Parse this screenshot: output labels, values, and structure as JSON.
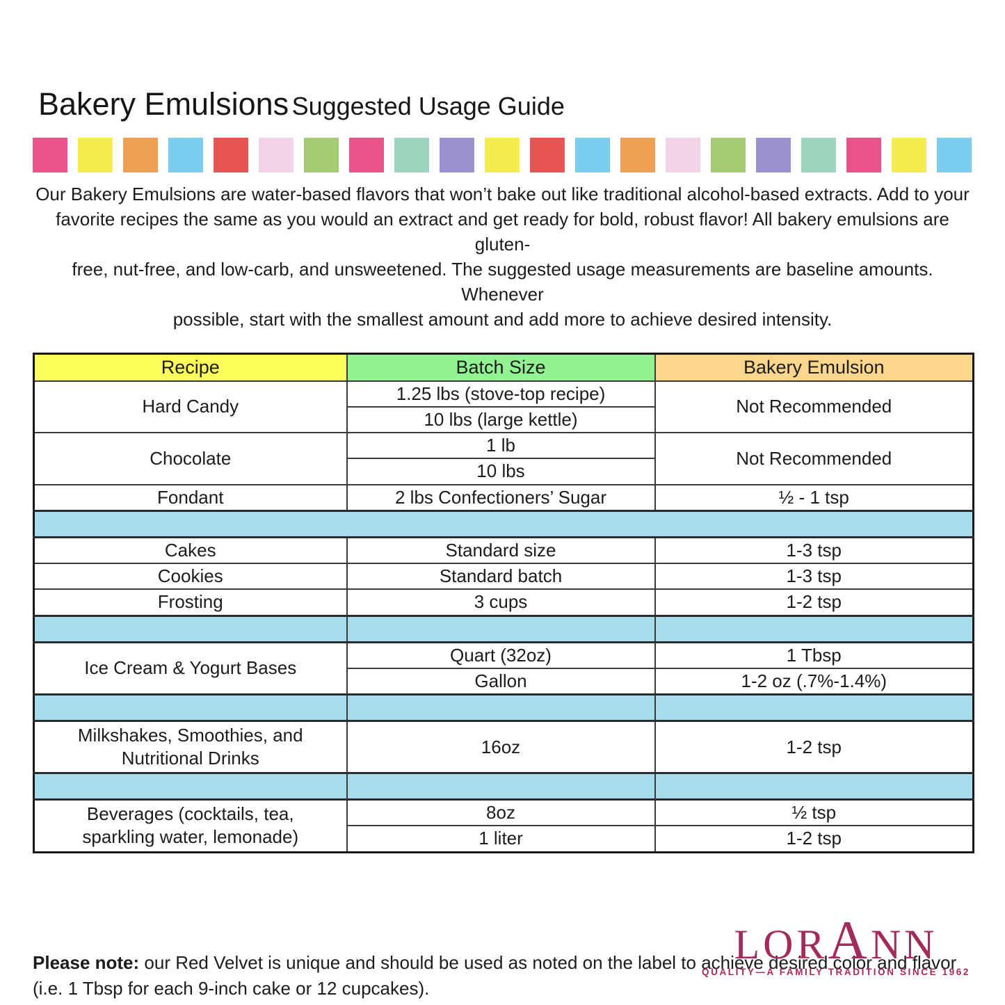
{
  "title": {
    "main": "Bakery Emulsions",
    "sub": "Suggested Usage Guide"
  },
  "palette_stripe": {
    "colors": [
      "#e8538b",
      "#f5ec4e",
      "#f0a055",
      "#7bcef0",
      "#e85555",
      "#f3d3e8",
      "#a3cc74",
      "#e8538b",
      "#9fd5bf",
      "#9a93ce",
      "#f5ec4e",
      "#e85555",
      "#7bcef0",
      "#f0a055",
      "#f3d3e8",
      "#a3cc74",
      "#9a93ce",
      "#9fd5bf",
      "#e8538b",
      "#f5ec4e",
      "#7bcef0"
    ]
  },
  "intro": {
    "line1": "Our Bakery Emulsions are water-based flavors that won’t bake out like traditional alcohol-based extracts. Add to your",
    "line2": "favorite recipes the same as you would an extract and get ready for bold, robust flavor! All bakery emulsions are gluten-",
    "line3": "free, nut-free, and low-carb, and unsweetened. The suggested usage measurements are baseline amounts. Whenever",
    "line4": "possible, start with the smallest amount and add more to achieve desired intensity."
  },
  "table": {
    "headers": {
      "recipe": "Recipe",
      "batch": "Batch Size",
      "emulsion": "Bakery Emulsion"
    },
    "colors": {
      "header_recipe": "#feff5a",
      "header_batch": "#92f392",
      "header_emulsion": "#fbd68c",
      "spacer": "#a6dcec"
    },
    "rows": {
      "hard_candy": {
        "recipe": "Hard Candy",
        "batch1": "1.25 lbs (stove-top recipe)",
        "batch2": "10 lbs (large kettle)",
        "emulsion": "Not Recommended"
      },
      "chocolate": {
        "recipe": "Chocolate",
        "batch1": "1 lb",
        "batch2": "10 lbs",
        "emulsion": "Not Recommended"
      },
      "fondant": {
        "recipe": "Fondant",
        "batch": "2 lbs Confectioners’ Sugar",
        "emulsion": "½ - 1 tsp"
      },
      "cakes": {
        "recipe": "Cakes",
        "batch": "Standard size",
        "emulsion": "1-3 tsp"
      },
      "cookies": {
        "recipe": "Cookies",
        "batch": "Standard batch",
        "emulsion": "1-3 tsp"
      },
      "frosting": {
        "recipe": "Frosting",
        "batch": "3 cups",
        "emulsion": "1-2 tsp"
      },
      "ice_cream": {
        "recipe": "Ice Cream & Yogurt Bases",
        "batch1": "Quart (32oz)",
        "emulsion1": "1 Tbsp",
        "batch2": "Gallon",
        "emulsion2": "1-2 oz (.7%-1.4%)"
      },
      "milkshakes": {
        "recipe_line1": "Milkshakes, Smoothies, and",
        "recipe_line2": "Nutritional Drinks",
        "batch": "16oz",
        "emulsion": "1-2 tsp"
      },
      "beverages": {
        "recipe_line1": "Beverages (cocktails, tea,",
        "recipe_line2": "sparkling water, lemonade)",
        "batch1": "8oz",
        "emulsion1": "½ tsp",
        "batch2": "1 liter",
        "emulsion2": "1-2 tsp"
      }
    }
  },
  "note": {
    "bold": "Please note:",
    "rest": " our Red Velvet is unique and should be used as noted on the label to achieve desired color and flavor (i.e. 1 Tbsp for each 9-inch cake or 12 cupcakes)."
  },
  "logo": {
    "brand_parts": {
      "pre": "LOR",
      "a": "A",
      "post": "NN"
    },
    "tagline": "QUALITY—A FAMILY TRADITION SINCE 1962",
    "color": "#a32a5c"
  }
}
